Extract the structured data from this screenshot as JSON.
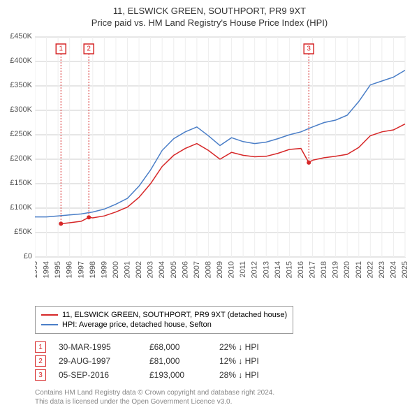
{
  "title": {
    "line1": "11, ELSWICK GREEN, SOUTHPORT, PR9 9XT",
    "line2": "Price paid vs. HM Land Registry's House Price Index (HPI)"
  },
  "chart": {
    "type": "line",
    "background_color": "#ffffff",
    "grid_color": "#cccccc",
    "grid_minor_color": "#eeeeee",
    "x": {
      "min": 1993,
      "max": 2025,
      "ticks": [
        1993,
        1994,
        1995,
        1996,
        1997,
        1998,
        1999,
        2000,
        2001,
        2002,
        2003,
        2004,
        2005,
        2006,
        2007,
        2008,
        2009,
        2010,
        2011,
        2012,
        2013,
        2014,
        2015,
        2016,
        2017,
        2018,
        2019,
        2020,
        2021,
        2022,
        2023,
        2024,
        2025
      ],
      "tick_fontsize": 11,
      "tick_color": "#555555",
      "tick_rotation": -90
    },
    "y": {
      "min": 0,
      "max": 450000,
      "ticks": [
        0,
        50000,
        100000,
        150000,
        200000,
        250000,
        300000,
        350000,
        400000,
        450000
      ],
      "tick_labels": [
        "£0",
        "£50K",
        "£100K",
        "£150K",
        "£200K",
        "£250K",
        "£300K",
        "£350K",
        "£400K",
        "£450K"
      ],
      "tick_fontsize": 11,
      "tick_color": "#555555"
    },
    "series": [
      {
        "name": "11, ELSWICK GREEN, SOUTHPORT, PR9 9XT (detached house)",
        "color": "#d62728",
        "line_width": 1.5,
        "points": [
          [
            1995.25,
            68000
          ],
          [
            1996,
            70000
          ],
          [
            1997,
            73000
          ],
          [
            1997.66,
            81000
          ],
          [
            1998,
            80000
          ],
          [
            1999,
            84000
          ],
          [
            2000,
            92000
          ],
          [
            2001,
            102000
          ],
          [
            2002,
            122000
          ],
          [
            2003,
            150000
          ],
          [
            2004,
            185000
          ],
          [
            2005,
            208000
          ],
          [
            2006,
            222000
          ],
          [
            2007,
            232000
          ],
          [
            2008,
            218000
          ],
          [
            2009,
            200000
          ],
          [
            2010,
            214000
          ],
          [
            2011,
            208000
          ],
          [
            2012,
            205000
          ],
          [
            2013,
            206000
          ],
          [
            2014,
            212000
          ],
          [
            2015,
            220000
          ],
          [
            2016,
            222000
          ],
          [
            2016.68,
            193000
          ],
          [
            2017,
            198000
          ],
          [
            2018,
            203000
          ],
          [
            2019,
            206000
          ],
          [
            2020,
            210000
          ],
          [
            2021,
            224000
          ],
          [
            2022,
            248000
          ],
          [
            2023,
            256000
          ],
          [
            2024,
            260000
          ],
          [
            2025,
            272000
          ]
        ]
      },
      {
        "name": "HPI: Average price, detached house, Sefton",
        "color": "#4a7ec7",
        "line_width": 1.5,
        "points": [
          [
            1993,
            82000
          ],
          [
            1994,
            82000
          ],
          [
            1995,
            84000
          ],
          [
            1996,
            86000
          ],
          [
            1997,
            88000
          ],
          [
            1998,
            92000
          ],
          [
            1999,
            98000
          ],
          [
            2000,
            108000
          ],
          [
            2001,
            120000
          ],
          [
            2002,
            145000
          ],
          [
            2003,
            178000
          ],
          [
            2004,
            218000
          ],
          [
            2005,
            242000
          ],
          [
            2006,
            256000
          ],
          [
            2007,
            266000
          ],
          [
            2008,
            248000
          ],
          [
            2009,
            228000
          ],
          [
            2010,
            244000
          ],
          [
            2011,
            236000
          ],
          [
            2012,
            232000
          ],
          [
            2013,
            235000
          ],
          [
            2014,
            242000
          ],
          [
            2015,
            250000
          ],
          [
            2016,
            256000
          ],
          [
            2017,
            266000
          ],
          [
            2018,
            275000
          ],
          [
            2019,
            280000
          ],
          [
            2020,
            290000
          ],
          [
            2021,
            318000
          ],
          [
            2022,
            352000
          ],
          [
            2023,
            360000
          ],
          [
            2024,
            368000
          ],
          [
            2025,
            382000
          ]
        ]
      }
    ],
    "markers": [
      {
        "n": "1",
        "x": 1995.25,
        "y": 68000
      },
      {
        "n": "2",
        "x": 1997.66,
        "y": 81000
      },
      {
        "n": "3",
        "x": 2016.68,
        "y": 193000
      }
    ]
  },
  "legend": {
    "items": [
      {
        "color": "#d62728",
        "label": "11, ELSWICK GREEN, SOUTHPORT, PR9 9XT (detached house)"
      },
      {
        "color": "#4a7ec7",
        "label": "HPI: Average price, detached house, Sefton"
      }
    ]
  },
  "sales": [
    {
      "n": "1",
      "date": "30-MAR-1995",
      "price": "£68,000",
      "delta": "22% ↓ HPI"
    },
    {
      "n": "2",
      "date": "29-AUG-1997",
      "price": "£81,000",
      "delta": "12% ↓ HPI"
    },
    {
      "n": "3",
      "date": "05-SEP-2016",
      "price": "£193,000",
      "delta": "28% ↓ HPI"
    }
  ],
  "footer": {
    "line1": "Contains HM Land Registry data © Crown copyright and database right 2024.",
    "line2": "This data is licensed under the Open Government Licence v3.0."
  }
}
